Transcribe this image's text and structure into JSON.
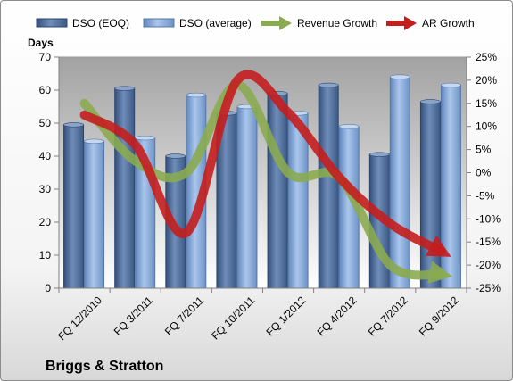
{
  "chart_data": {
    "type": "bar",
    "company": "Briggs & Stratton",
    "y_left_label": "Days",
    "categories": [
      "FQ 12/2010",
      "FQ 3/2011",
      "FQ 7/2011",
      "FQ 10/2011",
      "FQ 1/2012",
      "FQ 4/2012",
      "FQ 7/2012",
      "FQ 9/2012"
    ],
    "y_left_ticks": [
      "0",
      "10",
      "20",
      "30",
      "40",
      "50",
      "60",
      "70"
    ],
    "y_right_ticks": [
      "-25%",
      "-20%",
      "-15%",
      "-10%",
      "-5%",
      "0%",
      "5%",
      "10%",
      "15%",
      "20%",
      "25%"
    ],
    "y_left_range": [
      0,
      70
    ],
    "y_right_range": [
      -25,
      25
    ],
    "grid": false,
    "legend_position": "top",
    "series": [
      {
        "name": "DSO (EOQ)",
        "type": "bar",
        "axis": "left",
        "color": "#4f6d99",
        "values": [
          49.5,
          60.5,
          40,
          53,
          59,
          61.5,
          40.5,
          56.5
        ]
      },
      {
        "name": "DSO (average)",
        "type": "bar",
        "axis": "left",
        "color": "#8fb0dc",
        "values": [
          44.5,
          45.5,
          58.5,
          55,
          53,
          49,
          64,
          61.5
        ]
      },
      {
        "name": "Revenue Growth",
        "type": "line",
        "axis": "right",
        "unit": "%",
        "color": "#8aab50",
        "values": [
          15,
          2.5,
          0,
          19,
          0,
          -1,
          -20,
          -22
        ]
      },
      {
        "name": "AR Growth",
        "type": "line",
        "axis": "right",
        "unit": "%",
        "color": "#c41e1e",
        "values": [
          12.5,
          6,
          -13,
          20,
          13,
          -1,
          -11,
          -17
        ]
      }
    ]
  }
}
